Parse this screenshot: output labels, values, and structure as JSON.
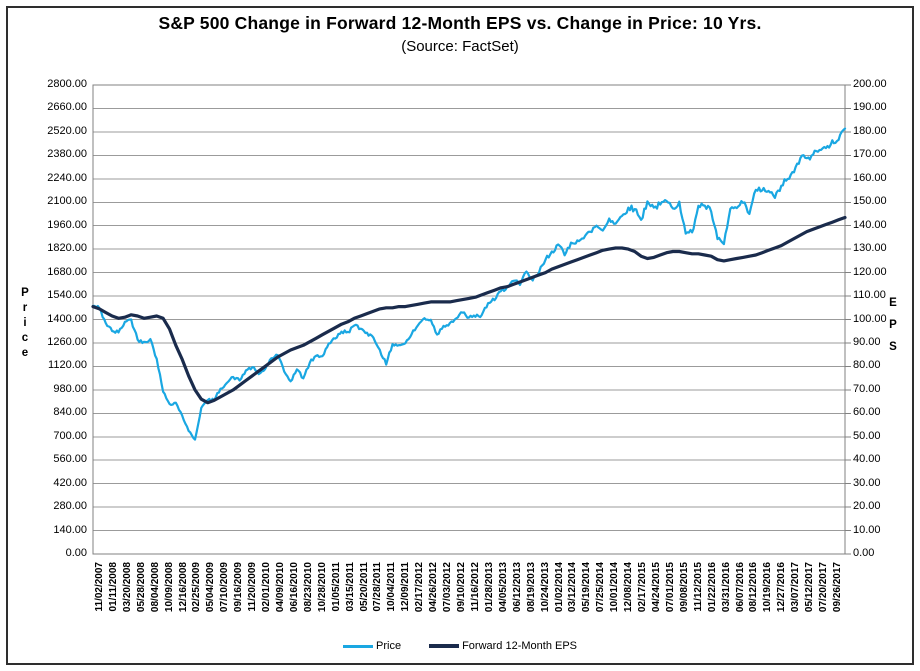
{
  "title": "S&P 500 Change in Forward 12-Month EPS vs. Change in Price: 10 Yrs.",
  "subtitle": "(Source: FactSet)",
  "colors": {
    "price_line": "#1aa7e2",
    "eps_line": "#1a2b4c",
    "gridline": "#9b9b9b",
    "plot_border": "#808080",
    "outer_frame": "#2e2e2e"
  },
  "left_axis": {
    "title": "Price",
    "min": 0,
    "max": 2800,
    "step": 140,
    "tick_labels": [
      "2800.00",
      "2660.00",
      "2520.00",
      "2380.00",
      "2240.00",
      "2100.00",
      "1960.00",
      "1820.00",
      "1680.00",
      "1540.00",
      "1400.00",
      "1260.00",
      "1120.00",
      "980.00",
      "840.00",
      "700.00",
      "560.00",
      "420.00",
      "280.00",
      "140.00",
      "0.00"
    ]
  },
  "right_axis": {
    "title": "EPS",
    "min": 0,
    "max": 200,
    "step": 10,
    "tick_labels": [
      "200.00",
      "190.00",
      "180.00",
      "170.00",
      "160.00",
      "150.00",
      "140.00",
      "130.00",
      "120.00",
      "110.00",
      "100.00",
      "90.00",
      "80.00",
      "70.00",
      "60.00",
      "50.00",
      "40.00",
      "30.00",
      "20.00",
      "10.00",
      "0.00"
    ]
  },
  "legend": {
    "items": [
      {
        "label": "Price",
        "color": "#1aa7e2"
      },
      {
        "label": "Forward 12-Month EPS",
        "color": "#1a2b4c"
      }
    ]
  },
  "chart_data": {
    "type": "line",
    "title": "S&P 500 Change in Forward 12-Month EPS vs. Change in Price: 10 Yrs.",
    "subtitle": "(Source: FactSet)",
    "x_start": "11/02/2007",
    "x_end": "09/26/2017",
    "x_tick_labels": [
      "11/02/2007",
      "01/11/2008",
      "03/20/2008",
      "05/28/2008",
      "08/04/2008",
      "10/09/2008",
      "12/16/2008",
      "02/25/2009",
      "05/04/2009",
      "07/10/2009",
      "09/16/2009",
      "11/20/2009",
      "02/01/2010",
      "04/09/2010",
      "06/16/2010",
      "08/23/2010",
      "10/28/2010",
      "01/05/2011",
      "03/15/2011",
      "05/20/2011",
      "07/28/2011",
      "10/04/2011",
      "12/09/2011",
      "02/17/2012",
      "04/26/2012",
      "07/03/2012",
      "09/10/2012",
      "11/16/2012",
      "01/28/2013",
      "04/05/2013",
      "06/12/2013",
      "08/19/2013",
      "10/24/2013",
      "01/02/2014",
      "03/12/2014",
      "05/19/2014",
      "07/25/2014",
      "10/01/2014",
      "12/08/2014",
      "02/17/2015",
      "04/24/2015",
      "07/01/2015",
      "09/08/2015",
      "11/12/2015",
      "01/22/2016",
      "03/31/2016",
      "06/07/2016",
      "08/12/2016",
      "10/19/2016",
      "12/27/2016",
      "03/07/2017",
      "05/12/2017",
      "07/20/2017",
      "09/26/2017"
    ],
    "left_ylim": [
      0,
      2800
    ],
    "right_ylim": [
      0,
      200
    ],
    "grid": "horizontal",
    "legend_position": "bottom",
    "sampling_note": "values estimated monthly from Nov 2007 through Sep 2017",
    "series": [
      {
        "name": "Price",
        "axis": "left",
        "color": "#1aa7e2",
        "values": [
          1481,
          1468,
          1379,
          1331,
          1323,
          1386,
          1400,
          1280,
          1267,
          1283,
          1166,
          969,
          896,
          903,
          826,
          735,
          683,
          873,
          919,
          919,
          987,
          1021,
          1057,
          1036,
          1096,
          1115,
          1074,
          1104,
          1169,
          1187,
          1089,
          1031,
          1102,
          1049,
          1141,
          1183,
          1181,
          1258,
          1286,
          1327,
          1326,
          1364,
          1345,
          1321,
          1292,
          1219,
          1131,
          1253,
          1247,
          1258,
          1312,
          1366,
          1408,
          1398,
          1310,
          1362,
          1379,
          1407,
          1441,
          1412,
          1416,
          1426,
          1498,
          1515,
          1569,
          1598,
          1631,
          1606,
          1686,
          1633,
          1682,
          1757,
          1806,
          1848,
          1783,
          1859,
          1872,
          1884,
          1924,
          1960,
          1931,
          2003,
          1972,
          2018,
          2068,
          2059,
          1995,
          2105,
          2068,
          2086,
          2107,
          2063,
          2104,
          1913,
          1920,
          2079,
          2080,
          2044,
          1880,
          1850,
          2060,
          2065,
          2097,
          2030,
          2174,
          2171,
          2168,
          2126,
          2199,
          2239,
          2279,
          2364,
          2363,
          2384,
          2412,
          2423,
          2470,
          2472,
          2540
        ]
      },
      {
        "name": "Forward 12-Month EPS",
        "axis": "right",
        "color": "#1a2b4c",
        "values": [
          105.5,
          104.5,
          103,
          101.5,
          100.5,
          101,
          102,
          101.5,
          100.5,
          101,
          101.5,
          100.5,
          96,
          89,
          83,
          76,
          70,
          66,
          64.5,
          65.5,
          67,
          68.5,
          70,
          72,
          74,
          76,
          78,
          80,
          82,
          84,
          85.5,
          87,
          88,
          89,
          90.5,
          92,
          93.5,
          95,
          96.5,
          98,
          99,
          100.5,
          101.5,
          102.5,
          103.5,
          104.5,
          105,
          105,
          105.5,
          105.5,
          106,
          106.5,
          107,
          107.5,
          107.5,
          107.5,
          107.5,
          108,
          108.5,
          109,
          109.5,
          110.5,
          111.5,
          112.5,
          113.5,
          114,
          115,
          116,
          117,
          118,
          119,
          120,
          121.5,
          122.5,
          123.5,
          124.5,
          125.5,
          126.5,
          127.5,
          128.5,
          129.5,
          130,
          130.5,
          130.5,
          130,
          129,
          127,
          126,
          126.5,
          127.5,
          128.5,
          129,
          129,
          128.5,
          128,
          128,
          127.5,
          127,
          125.5,
          125,
          125.5,
          126,
          126.5,
          127,
          127.5,
          128.5,
          129.5,
          130.5,
          131.5,
          133,
          134.5,
          136,
          137.5,
          138.5,
          139.5,
          140.5,
          141.5,
          142.5,
          143.5
        ]
      }
    ]
  }
}
